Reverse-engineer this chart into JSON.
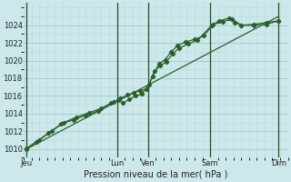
{
  "title": "Pression niveau de la mer( hPa )",
  "bg_color": "#cce8ea",
  "line_color": "#2d5f2d",
  "grid_color_major": "#aacccc",
  "grid_color_minor": "#bcd8da",
  "ylim": [
    1009.0,
    1026.5
  ],
  "yticks": [
    1010,
    1012,
    1014,
    1016,
    1018,
    1020,
    1022,
    1024
  ],
  "xlim": [
    0,
    8.5
  ],
  "day_labels": [
    "Jeu",
    "Lun",
    "Ven",
    "Sam",
    "Dim"
  ],
  "day_x": [
    0.1,
    3.0,
    4.0,
    6.0,
    8.2
  ],
  "day_vlines": [
    0.1,
    3.0,
    4.0,
    6.0,
    8.2
  ],
  "series1": {
    "x": [
      0.1,
      0.4,
      0.8,
      1.2,
      1.6,
      2.0,
      2.4,
      2.8,
      3.05,
      3.2,
      3.4,
      3.6,
      3.8,
      4.05,
      4.2,
      4.4,
      4.6,
      4.8,
      5.0,
      5.3,
      5.6,
      6.05,
      6.3,
      6.6,
      6.8,
      7.0,
      7.4,
      7.8,
      8.2
    ],
    "y": [
      1010.0,
      1010.8,
      1011.8,
      1012.8,
      1013.3,
      1013.8,
      1014.3,
      1015.2,
      1015.5,
      1015.2,
      1015.6,
      1016.0,
      1016.2,
      1017.3,
      1018.8,
      1019.4,
      1019.9,
      1020.8,
      1021.4,
      1021.9,
      1022.3,
      1024.0,
      1024.5,
      1024.8,
      1024.3,
      1024.0,
      1024.0,
      1024.1,
      1024.5
    ],
    "marker": "D",
    "markersize": 2.2,
    "lw": 0.9
  },
  "series2": {
    "x": [
      0.1,
      0.5,
      0.9,
      1.3,
      1.7,
      2.1,
      2.5,
      2.9,
      3.1,
      3.35,
      3.55,
      3.75,
      3.95,
      4.15,
      4.35,
      4.55,
      4.75,
      4.95,
      5.2,
      5.5,
      5.8,
      6.1,
      6.4,
      6.7,
      7.0,
      7.4,
      7.8,
      8.2
    ],
    "y": [
      1010.1,
      1011.0,
      1012.0,
      1013.0,
      1013.6,
      1014.1,
      1014.6,
      1015.3,
      1015.7,
      1016.1,
      1016.4,
      1016.6,
      1016.8,
      1018.2,
      1019.6,
      1020.1,
      1021.0,
      1021.7,
      1022.1,
      1022.4,
      1022.8,
      1024.1,
      1024.4,
      1024.7,
      1024.0,
      1024.1,
      1024.3,
      1024.5
    ],
    "marker": "D",
    "markersize": 2.2,
    "lw": 0.9
  },
  "series3": {
    "x": [
      0.1,
      8.2
    ],
    "y": [
      1010.0,
      1025.0
    ],
    "lw": 0.9
  }
}
